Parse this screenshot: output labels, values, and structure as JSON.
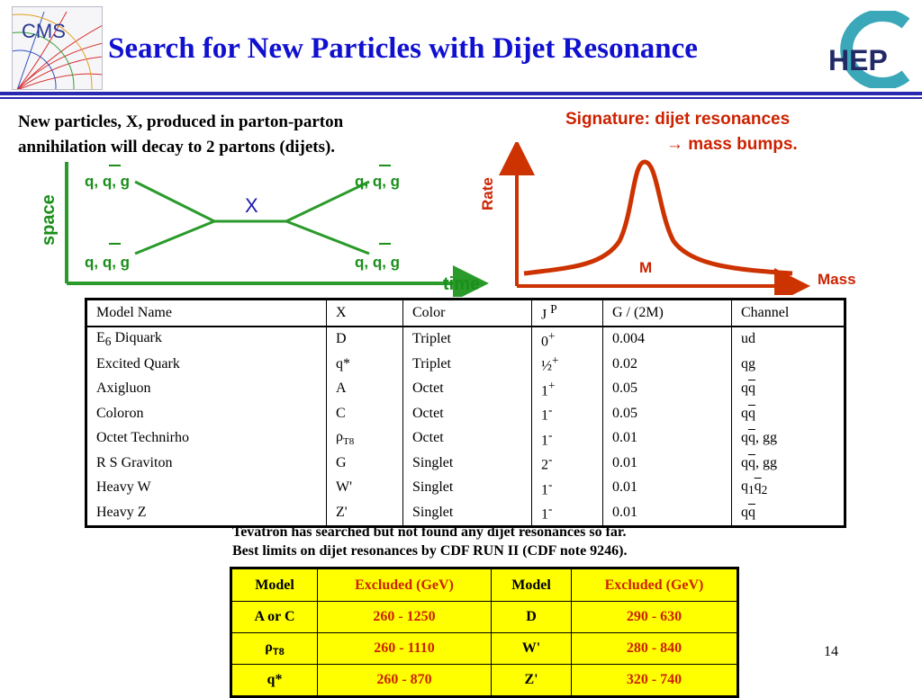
{
  "slide": {
    "title": "Search for New Particles with Dijet Resonance",
    "page_number": "14",
    "logos": {
      "cms": "CMS",
      "hep": "HEP"
    }
  },
  "intro": {
    "line1": "New particles, X, produced in parton-parton",
    "line2": "annihilation will decay to 2 partons (dijets)."
  },
  "signature": {
    "line1": "Signature: dijet resonances",
    "line2": "→ mass bumps."
  },
  "feynman": {
    "top_left": "q, q, g",
    "top_right": "q, q, g",
    "bottom_left": "q, q, g",
    "bottom_right": "q, q, g",
    "center": "X",
    "y_axis": "space",
    "x_axis": "time",
    "colors": {
      "lines": "#2a9a2a",
      "labels": "#1a8f1a",
      "center": "#1a1ab0"
    }
  },
  "mass_plot": {
    "y_label": "Rate",
    "x_label": "Mass",
    "peak_label": "M",
    "color": "#cc3300"
  },
  "models_table": {
    "headers": {
      "model": "Model Name",
      "x": "X",
      "color": "Color",
      "jp_j": "J",
      "jp_p": "P",
      "width": "G / (2M)",
      "channel": "Channel"
    },
    "rows": [
      {
        "name": "E",
        "name_sub": "6",
        "name_rest": " Diquark",
        "x": "D",
        "color": "Triplet",
        "jp": "0",
        "jp_sup": "+",
        "width": "0.004",
        "ch_a": "ud",
        "ch_b": "",
        "ch_c": ""
      },
      {
        "name": "Excited Quark",
        "x": "q*",
        "color": "Triplet",
        "jp": "½",
        "jp_sup": "+",
        "width": "0.02",
        "ch_a": "qg",
        "ch_b": "",
        "ch_c": ""
      },
      {
        "name": "Axigluon",
        "x": "A",
        "color": "Octet",
        "jp": "1",
        "jp_sup": "+",
        "width": "0.05",
        "ch_a": "q",
        "ch_b": "q",
        "ch_c": ""
      },
      {
        "name": "Coloron",
        "x": "C",
        "color": "Octet",
        "jp": "1",
        "jp_sup": "-",
        "width": "0.05",
        "ch_a": "q",
        "ch_b": "q",
        "ch_c": ""
      },
      {
        "name": "Octet Technirho",
        "x": "ρ",
        "x_sub": "T8",
        "color": "Octet",
        "jp": "1",
        "jp_sup": "-",
        "width": "0.01",
        "ch_a": "q",
        "ch_b": "q",
        "ch_c": ", gg"
      },
      {
        "name": "R S Graviton",
        "x": "G",
        "color": "Singlet",
        "jp": "2",
        "jp_sup": "-",
        "width": "0.01",
        "ch_a": "q",
        "ch_b": "q",
        "ch_c": ", gg"
      },
      {
        "name": "Heavy  W",
        "x": "W'",
        "color": "Singlet",
        "jp": "1",
        "jp_sup": "-",
        "width": "0.01",
        "ch_a": "q",
        "ch_a_sub": "1",
        "ch_b": "q",
        "ch_b_sub": "2"
      },
      {
        "name": "Heavy  Z",
        "x": "Z'",
        "color": "Singlet",
        "jp": "1",
        "jp_sup": "-",
        "width": "0.01",
        "ch_a": "q",
        "ch_b": "q",
        "ch_c": ""
      }
    ]
  },
  "note": {
    "line1": "Tevatron has searched but not found any dijet resonances so far.",
    "line2": "Best limits on dijet resonances  by CDF RUN II (CDF note 9246)."
  },
  "limits_table": {
    "headers": [
      "Model",
      "Excluded (GeV)",
      "Model",
      "Excluded (GeV)"
    ],
    "rows": [
      {
        "m1": "A or C",
        "r1": "260 - 1250",
        "m2": "D",
        "r2": "290 - 630"
      },
      {
        "m1": "ρ",
        "m1_sub": "T8",
        "r1": "260 - 1110",
        "m2": "W'",
        "r2": "280 - 840"
      },
      {
        "m1": "q*",
        "r1": "260 - 870",
        "m2": "Z'",
        "r2": "320 - 740"
      }
    ],
    "colors": {
      "cell_bg": "#ffff00",
      "range_text": "#cc2200"
    }
  }
}
